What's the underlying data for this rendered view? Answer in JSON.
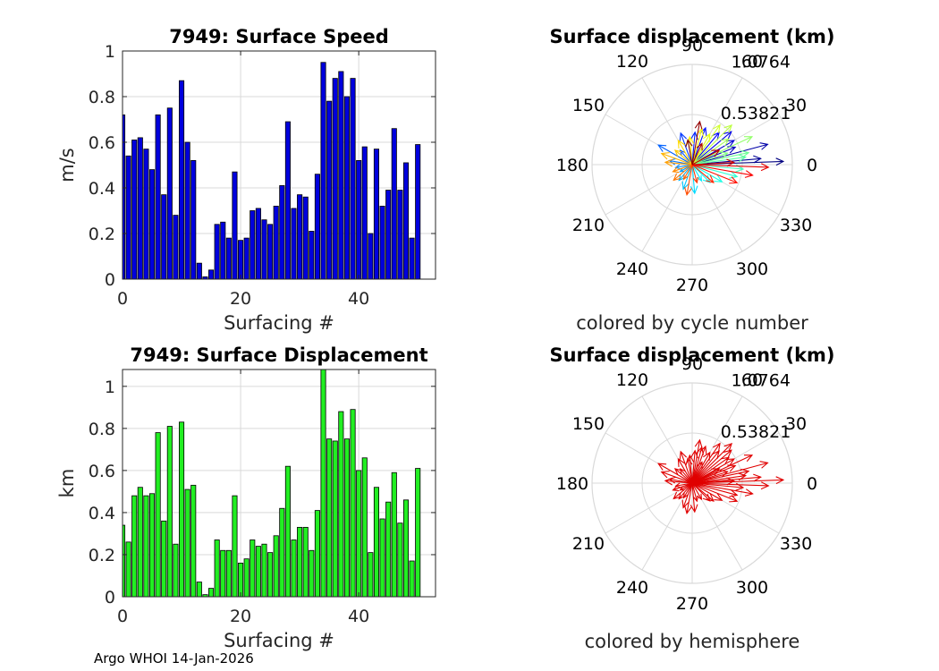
{
  "footer": "Argo WHOI 14-Jan-2026",
  "colors": {
    "speed_bar": "#0000dd",
    "disp_bar": "#22ee22",
    "grid": "#d9d9d9",
    "hemisphere_arrow": "#e00000"
  },
  "chart_data": [
    {
      "type": "bar",
      "title": "7949: Surface Speed",
      "xlabel": "Surfacing #",
      "ylabel": "m/s",
      "xlim": [
        0,
        53
      ],
      "ylim": [
        0,
        1
      ],
      "xticks": [
        0,
        20,
        40
      ],
      "yticks": [
        0,
        0.2,
        0.4,
        0.6,
        0.8,
        1
      ],
      "ytick_labels": [
        "0",
        "0.2",
        "0.4",
        "0.6",
        "0.8",
        "1"
      ],
      "x": [
        0,
        1,
        2,
        3,
        4,
        5,
        6,
        7,
        8,
        9,
        10,
        11,
        12,
        13,
        14,
        15,
        16,
        17,
        18,
        19,
        20,
        21,
        22,
        23,
        24,
        25,
        26,
        27,
        28,
        29,
        30,
        31,
        32,
        33,
        34,
        35,
        36,
        37,
        38,
        39,
        40,
        41,
        42,
        43,
        44,
        45,
        46,
        47,
        48,
        49,
        50
      ],
      "values": [
        0.72,
        0.54,
        0.61,
        0.62,
        0.57,
        0.48,
        0.72,
        0.37,
        0.75,
        0.28,
        0.87,
        0.6,
        0.52,
        0.07,
        0.01,
        0.04,
        0.24,
        0.25,
        0.18,
        0.47,
        0.17,
        0.18,
        0.3,
        0.31,
        0.26,
        0.24,
        0.32,
        0.41,
        0.69,
        0.31,
        0.37,
        0.36,
        0.21,
        0.46,
        0.95,
        0.78,
        0.88,
        0.91,
        0.8,
        0.88,
        0.52,
        0.58,
        0.2,
        0.57,
        0.32,
        0.39,
        0.66,
        0.39,
        0.51,
        0.18,
        0.59
      ]
    },
    {
      "type": "bar",
      "title": "7949: Surface Displacement",
      "xlabel": "Surfacing #",
      "ylabel": "km",
      "xlim": [
        0,
        53
      ],
      "ylim": [
        0,
        1.08
      ],
      "xticks": [
        0,
        20,
        40
      ],
      "yticks": [
        0,
        0.2,
        0.4,
        0.6,
        0.8,
        1
      ],
      "ytick_labels": [
        "0",
        "0.2",
        "0.4",
        "0.6",
        "0.8",
        "1"
      ],
      "x": [
        0,
        1,
        2,
        3,
        4,
        5,
        6,
        7,
        8,
        9,
        10,
        11,
        12,
        13,
        14,
        15,
        16,
        17,
        18,
        19,
        20,
        21,
        22,
        23,
        24,
        25,
        26,
        27,
        28,
        29,
        30,
        31,
        32,
        33,
        34,
        35,
        36,
        37,
        38,
        39,
        40,
        41,
        42,
        43,
        44,
        45,
        46,
        47,
        48,
        49,
        50
      ],
      "values": [
        0.34,
        0.26,
        0.48,
        0.52,
        0.48,
        0.49,
        0.78,
        0.36,
        0.81,
        0.25,
        0.83,
        0.51,
        0.53,
        0.07,
        0.01,
        0.04,
        0.27,
        0.22,
        0.22,
        0.48,
        0.16,
        0.18,
        0.27,
        0.24,
        0.25,
        0.21,
        0.29,
        0.42,
        0.62,
        0.27,
        0.33,
        0.33,
        0.22,
        0.41,
        1.08,
        0.75,
        0.74,
        0.88,
        0.75,
        0.89,
        0.6,
        0.66,
        0.21,
        0.52,
        0.37,
        0.45,
        0.59,
        0.35,
        0.46,
        0.17,
        0.61
      ]
    },
    {
      "type": "compass",
      "title": "Surface displacement (km)",
      "caption": "colored by cycle number",
      "rlim": [
        0,
        1.0764
      ],
      "ring_labels": [
        "0.53821",
        "1.0764"
      ],
      "angle_labels": [
        "0",
        "30",
        "60",
        "90",
        "120",
        "150",
        "180",
        "210",
        "240",
        "270",
        "300",
        "330"
      ],
      "colormap": "jet",
      "vectors": [
        {
          "angle": 2,
          "r": 0.98
        },
        {
          "angle": 5,
          "r": 0.74
        },
        {
          "angle": 15,
          "r": 0.84
        },
        {
          "angle": 22,
          "r": 0.5
        },
        {
          "angle": 30,
          "r": 0.52
        },
        {
          "angle": 40,
          "r": 0.55
        },
        {
          "angle": 50,
          "r": 0.45
        },
        {
          "angle": 70,
          "r": 0.42
        },
        {
          "angle": 85,
          "r": 0.35
        },
        {
          "angle": 110,
          "r": 0.36
        },
        {
          "angle": 130,
          "r": 0.2
        },
        {
          "angle": 150,
          "r": 0.42
        },
        {
          "angle": 170,
          "r": 0.25
        },
        {
          "angle": 190,
          "r": 0.18
        },
        {
          "angle": 210,
          "r": 0.15
        },
        {
          "angle": 230,
          "r": 0.22
        },
        {
          "angle": 250,
          "r": 0.28
        },
        {
          "angle": 275,
          "r": 0.31
        },
        {
          "angle": 300,
          "r": 0.2
        },
        {
          "angle": 315,
          "r": 0.27
        },
        {
          "angle": 330,
          "r": 0.37
        },
        {
          "angle": 345,
          "r": 0.5
        },
        {
          "angle": 355,
          "r": 0.55
        },
        {
          "angle": 8,
          "r": 0.58
        },
        {
          "angle": 12,
          "r": 0.62
        },
        {
          "angle": 18,
          "r": 0.4
        },
        {
          "angle": 25,
          "r": 0.71
        },
        {
          "angle": 35,
          "r": 0.48
        },
        {
          "angle": 45,
          "r": 0.6
        },
        {
          "angle": 55,
          "r": 0.52
        },
        {
          "angle": 60,
          "r": 0.38
        },
        {
          "angle": 75,
          "r": 0.4
        },
        {
          "angle": 95,
          "r": 0.3
        },
        {
          "angle": 120,
          "r": 0.3
        },
        {
          "angle": 140,
          "r": 0.24
        },
        {
          "angle": 160,
          "r": 0.35
        },
        {
          "angle": 175,
          "r": 0.29
        },
        {
          "angle": 200,
          "r": 0.22
        },
        {
          "angle": 220,
          "r": 0.26
        },
        {
          "angle": 240,
          "r": 0.18
        },
        {
          "angle": 260,
          "r": 0.33
        },
        {
          "angle": 285,
          "r": 0.2
        },
        {
          "angle": 320,
          "r": 0.3
        },
        {
          "angle": 338,
          "r": 0.52
        },
        {
          "angle": 350,
          "r": 0.66
        },
        {
          "angle": 358,
          "r": 0.82
        },
        {
          "angle": 3,
          "r": 0.45
        },
        {
          "angle": 28,
          "r": 0.33
        },
        {
          "angle": 65,
          "r": 0.25
        },
        {
          "angle": 80,
          "r": 0.47
        },
        {
          "angle": 100,
          "r": 0.27
        }
      ]
    },
    {
      "type": "compass",
      "title": "Surface displacement (km)",
      "caption": "colored by hemisphere",
      "rlim": [
        0,
        1.0764
      ],
      "ring_labels": [
        "0.53821",
        "1.0764"
      ],
      "angle_labels": [
        "0",
        "30",
        "60",
        "90",
        "120",
        "150",
        "180",
        "210",
        "240",
        "270",
        "300",
        "330"
      ],
      "color": "#e00000",
      "vectors": [
        {
          "angle": 2,
          "r": 0.98
        },
        {
          "angle": 5,
          "r": 0.74
        },
        {
          "angle": 15,
          "r": 0.84
        },
        {
          "angle": 22,
          "r": 0.5
        },
        {
          "angle": 30,
          "r": 0.52
        },
        {
          "angle": 40,
          "r": 0.55
        },
        {
          "angle": 50,
          "r": 0.45
        },
        {
          "angle": 70,
          "r": 0.42
        },
        {
          "angle": 85,
          "r": 0.35
        },
        {
          "angle": 110,
          "r": 0.36
        },
        {
          "angle": 130,
          "r": 0.2
        },
        {
          "angle": 150,
          "r": 0.42
        },
        {
          "angle": 170,
          "r": 0.25
        },
        {
          "angle": 190,
          "r": 0.18
        },
        {
          "angle": 210,
          "r": 0.15
        },
        {
          "angle": 230,
          "r": 0.22
        },
        {
          "angle": 250,
          "r": 0.28
        },
        {
          "angle": 275,
          "r": 0.31
        },
        {
          "angle": 300,
          "r": 0.2
        },
        {
          "angle": 315,
          "r": 0.27
        },
        {
          "angle": 330,
          "r": 0.37
        },
        {
          "angle": 345,
          "r": 0.5
        },
        {
          "angle": 355,
          "r": 0.55
        },
        {
          "angle": 8,
          "r": 0.58
        },
        {
          "angle": 12,
          "r": 0.62
        },
        {
          "angle": 18,
          "r": 0.4
        },
        {
          "angle": 25,
          "r": 0.71
        },
        {
          "angle": 35,
          "r": 0.48
        },
        {
          "angle": 45,
          "r": 0.6
        },
        {
          "angle": 55,
          "r": 0.52
        },
        {
          "angle": 60,
          "r": 0.38
        },
        {
          "angle": 75,
          "r": 0.4
        },
        {
          "angle": 95,
          "r": 0.3
        },
        {
          "angle": 120,
          "r": 0.3
        },
        {
          "angle": 140,
          "r": 0.24
        },
        {
          "angle": 160,
          "r": 0.35
        },
        {
          "angle": 175,
          "r": 0.29
        },
        {
          "angle": 200,
          "r": 0.22
        },
        {
          "angle": 220,
          "r": 0.26
        },
        {
          "angle": 240,
          "r": 0.18
        },
        {
          "angle": 260,
          "r": 0.33
        },
        {
          "angle": 285,
          "r": 0.2
        },
        {
          "angle": 320,
          "r": 0.3
        },
        {
          "angle": 338,
          "r": 0.52
        },
        {
          "angle": 350,
          "r": 0.66
        },
        {
          "angle": 358,
          "r": 0.82
        },
        {
          "angle": 3,
          "r": 0.45
        },
        {
          "angle": 28,
          "r": 0.33
        },
        {
          "angle": 65,
          "r": 0.25
        },
        {
          "angle": 80,
          "r": 0.47
        },
        {
          "angle": 100,
          "r": 0.27
        }
      ]
    }
  ]
}
